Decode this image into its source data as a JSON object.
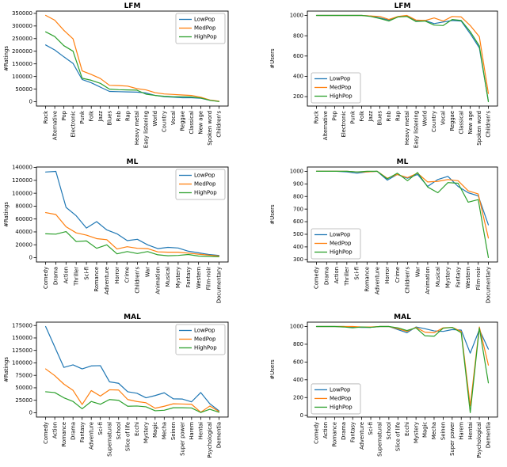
{
  "figure": {
    "colors": {
      "LowPop": "#1f77b4",
      "MedPop": "#ff7f0e",
      "HighPop": "#2ca02c"
    },
    "axis_color": "#000000",
    "legend_border_color": "#b0b0b0",
    "background": "#ffffff"
  },
  "chart_data": [
    {
      "id": "lfm-ratings",
      "type": "line",
      "title": "LFM",
      "ylabel": "#Ratings",
      "xlabel": "",
      "ylim": [
        -17000,
        359000
      ],
      "yticks": [
        0,
        50000,
        100000,
        150000,
        200000,
        250000,
        300000,
        350000
      ],
      "legend_position": "upper-right",
      "grid": false,
      "categories": [
        "Rock",
        "Alternative",
        "Pop",
        "Electronic",
        "Punk",
        "Folk",
        "Jazz",
        "Blues",
        "Rnb",
        "Rap",
        "Heavy metal",
        "Easy listening",
        "World",
        "Country",
        "Vocal",
        "Reggae",
        "Classical",
        "New age",
        "Spoken word",
        "Children's"
      ],
      "series": [
        {
          "name": "LowPop",
          "values": [
            225000,
            205000,
            178000,
            152000,
            88000,
            75000,
            58000,
            41000,
            40000,
            39000,
            38000,
            35000,
            25000,
            20000,
            18000,
            16000,
            16000,
            14000,
            6000,
            1500
          ]
        },
        {
          "name": "MedPop",
          "values": [
            342000,
            323000,
            283000,
            249000,
            122000,
            108000,
            92000,
            65000,
            64000,
            62000,
            52000,
            47000,
            36000,
            31000,
            29000,
            27000,
            25000,
            18000,
            7000,
            2000
          ]
        },
        {
          "name": "HighPop",
          "values": [
            277000,
            258000,
            222000,
            200000,
            93000,
            85000,
            73000,
            50000,
            48000,
            47000,
            46000,
            30000,
            25000,
            22000,
            20000,
            20000,
            19000,
            15000,
            6000,
            1000
          ]
        }
      ]
    },
    {
      "id": "lfm-users",
      "type": "line",
      "title": "LFM",
      "ylabel": "#Users",
      "xlabel": "",
      "ylim": [
        107,
        1043
      ],
      "yticks": [
        200,
        400,
        600,
        800,
        1000
      ],
      "legend_position": "lower-left",
      "grid": false,
      "categories": [
        "Rock",
        "Alternative",
        "Pop",
        "Electronic",
        "Punk",
        "Folk",
        "Jazz",
        "Blues",
        "Rnb",
        "Rap",
        "Heavy metal",
        "Easy listening",
        "World",
        "Country",
        "Vocal",
        "Reggae",
        "Classical",
        "New age",
        "Spoken word",
        "Children's"
      ],
      "series": [
        {
          "name": "LowPop",
          "values": [
            1000,
            1000,
            1000,
            1000,
            1000,
            1000,
            995,
            975,
            955,
            985,
            995,
            945,
            950,
            920,
            935,
            950,
            945,
            820,
            680,
            155
          ]
        },
        {
          "name": "MedPop",
          "values": [
            1000,
            1000,
            1000,
            1000,
            1000,
            1000,
            995,
            990,
            960,
            990,
            1000,
            955,
            950,
            975,
            945,
            990,
            985,
            900,
            790,
            230
          ]
        },
        {
          "name": "HighPop",
          "values": [
            1000,
            1000,
            1000,
            1000,
            1000,
            1000,
            990,
            970,
            945,
            985,
            990,
            940,
            945,
            905,
            900,
            960,
            950,
            840,
            700,
            150
          ]
        }
      ]
    },
    {
      "id": "ml-ratings",
      "type": "line",
      "title": "ML",
      "ylabel": "#Ratings",
      "xlabel": "",
      "ylim": [
        -6700,
        140700
      ],
      "yticks": [
        0,
        20000,
        40000,
        60000,
        80000,
        100000,
        120000,
        140000
      ],
      "legend_position": "upper-right",
      "grid": false,
      "categories": [
        "Comedy",
        "Drama",
        "Action",
        "Thriller",
        "Sci-fi",
        "Romance",
        "Adventure",
        "Horror",
        "Crime",
        "Children's",
        "War",
        "Animation",
        "Musical",
        "Mystery",
        "Fantasy",
        "Western",
        "Film-noir",
        "Documentary"
      ],
      "series": [
        {
          "name": "LowPop",
          "values": [
            133000,
            134000,
            78000,
            65000,
            46000,
            56000,
            43000,
            37000,
            26500,
            28500,
            20000,
            14000,
            16000,
            15000,
            10000,
            7500,
            5000,
            3500
          ]
        },
        {
          "name": "MedPop",
          "values": [
            70000,
            67000,
            48000,
            38500,
            35000,
            29500,
            28000,
            13500,
            17000,
            14500,
            14000,
            9000,
            8500,
            8500,
            7000,
            5500,
            4000,
            2500
          ]
        },
        {
          "name": "HighPop",
          "values": [
            37000,
            36500,
            40500,
            25000,
            26000,
            14500,
            20000,
            6000,
            9500,
            6500,
            9500,
            4500,
            3000,
            3500,
            5000,
            2500,
            2000,
            1500
          ]
        }
      ]
    },
    {
      "id": "ml-users",
      "type": "line",
      "title": "ML",
      "ylabel": "#Users",
      "xlabel": "",
      "ylim": [
        280,
        1034
      ],
      "yticks": [
        300,
        400,
        500,
        600,
        700,
        800,
        900,
        1000
      ],
      "legend_position": "lower-left",
      "grid": false,
      "categories": [
        "Comedy",
        "Drama",
        "Action",
        "Thriller",
        "Sci-fi",
        "Romance",
        "Adventure",
        "Horror",
        "Crime",
        "Children's",
        "War",
        "Animation",
        "Musical",
        "Mystery",
        "Fantasy",
        "Western",
        "Film-noir",
        "Documentary"
      ],
      "series": [
        {
          "name": "LowPop",
          "values": [
            1000,
            1000,
            1000,
            995,
            985,
            995,
            1000,
            930,
            975,
            945,
            975,
            880,
            935,
            960,
            880,
            830,
            805,
            575
          ]
        },
        {
          "name": "MedPop",
          "values": [
            1000,
            1000,
            1000,
            1000,
            995,
            995,
            1000,
            945,
            975,
            950,
            985,
            915,
            920,
            935,
            925,
            845,
            820,
            470
          ]
        },
        {
          "name": "HighPop",
          "values": [
            1000,
            1000,
            1000,
            1000,
            995,
            1000,
            1000,
            940,
            985,
            925,
            990,
            875,
            830,
            910,
            905,
            755,
            775,
            315
          ]
        }
      ]
    },
    {
      "id": "mal-ratings",
      "type": "line",
      "title": "MAL",
      "ylabel": "#Ratings",
      "xlabel": "",
      "ylim": [
        -8700,
        181700
      ],
      "yticks": [
        0,
        25000,
        50000,
        75000,
        100000,
        125000,
        150000,
        175000
      ],
      "legend_position": "upper-right",
      "grid": false,
      "categories": [
        "Comedy",
        "Action",
        "Romance",
        "Drama",
        "Fantasy",
        "Adventure",
        "Sci-fi",
        "Supernatural",
        "School",
        "Slice of life",
        "Ecchi",
        "Mystery",
        "Magic",
        "Mecha",
        "Seinen",
        "Super power",
        "Harem",
        "Hentai",
        "Psychological",
        "Dementia"
      ],
      "series": [
        {
          "name": "LowPop",
          "values": [
            173000,
            132000,
            91000,
            96000,
            88000,
            94000,
            94500,
            62000,
            59000,
            42000,
            39000,
            30000,
            34500,
            40000,
            28000,
            27500,
            22000,
            40500,
            18000,
            4000
          ]
        },
        {
          "name": "MedPop",
          "values": [
            88000,
            74500,
            57500,
            45000,
            16500,
            44500,
            33500,
            46000,
            45500,
            26500,
            22500,
            20000,
            9000,
            13000,
            18000,
            17500,
            17000,
            1000,
            13500,
            2500
          ]
        },
        {
          "name": "HighPop",
          "values": [
            42000,
            40500,
            30000,
            22500,
            8000,
            22500,
            17000,
            26500,
            25000,
            13000,
            13500,
            12000,
            4000,
            5000,
            10000,
            10000,
            9500,
            500,
            7000,
            1000
          ]
        }
      ]
    },
    {
      "id": "mal-users",
      "type": "line",
      "title": "MAL",
      "ylabel": "#Users",
      "xlabel": "",
      "ylim": [
        -20,
        1049
      ],
      "yticks": [
        0,
        200,
        400,
        600,
        800,
        1000
      ],
      "legend_position": "lower-left",
      "grid": false,
      "categories": [
        "Comedy",
        "Action",
        "Romance",
        "Drama",
        "Fantasy",
        "Adventure",
        "Sci-fi",
        "Supernatural",
        "School",
        "Slice of life",
        "Ecchi",
        "Mystery",
        "Magic",
        "Mecha",
        "Seinen",
        "Super power",
        "Harem",
        "Hentai",
        "Psychological",
        "Dementia"
      ],
      "series": [
        {
          "name": "LowPop",
          "values": [
            1000,
            1000,
            1000,
            1000,
            995,
            990,
            990,
            1000,
            1000,
            965,
            930,
            995,
            975,
            950,
            945,
            965,
            960,
            700,
            965,
            745
          ]
        },
        {
          "name": "MedPop",
          "values": [
            1000,
            1000,
            1000,
            1000,
            1000,
            995,
            995,
            1000,
            1000,
            975,
            945,
            990,
            935,
            930,
            985,
            990,
            945,
            105,
            995,
            565
          ]
        },
        {
          "name": "HighPop",
          "values": [
            1000,
            1000,
            1000,
            995,
            985,
            995,
            990,
            1000,
            1000,
            985,
            955,
            985,
            895,
            890,
            980,
            990,
            930,
            30,
            985,
            365
          ]
        }
      ]
    }
  ]
}
